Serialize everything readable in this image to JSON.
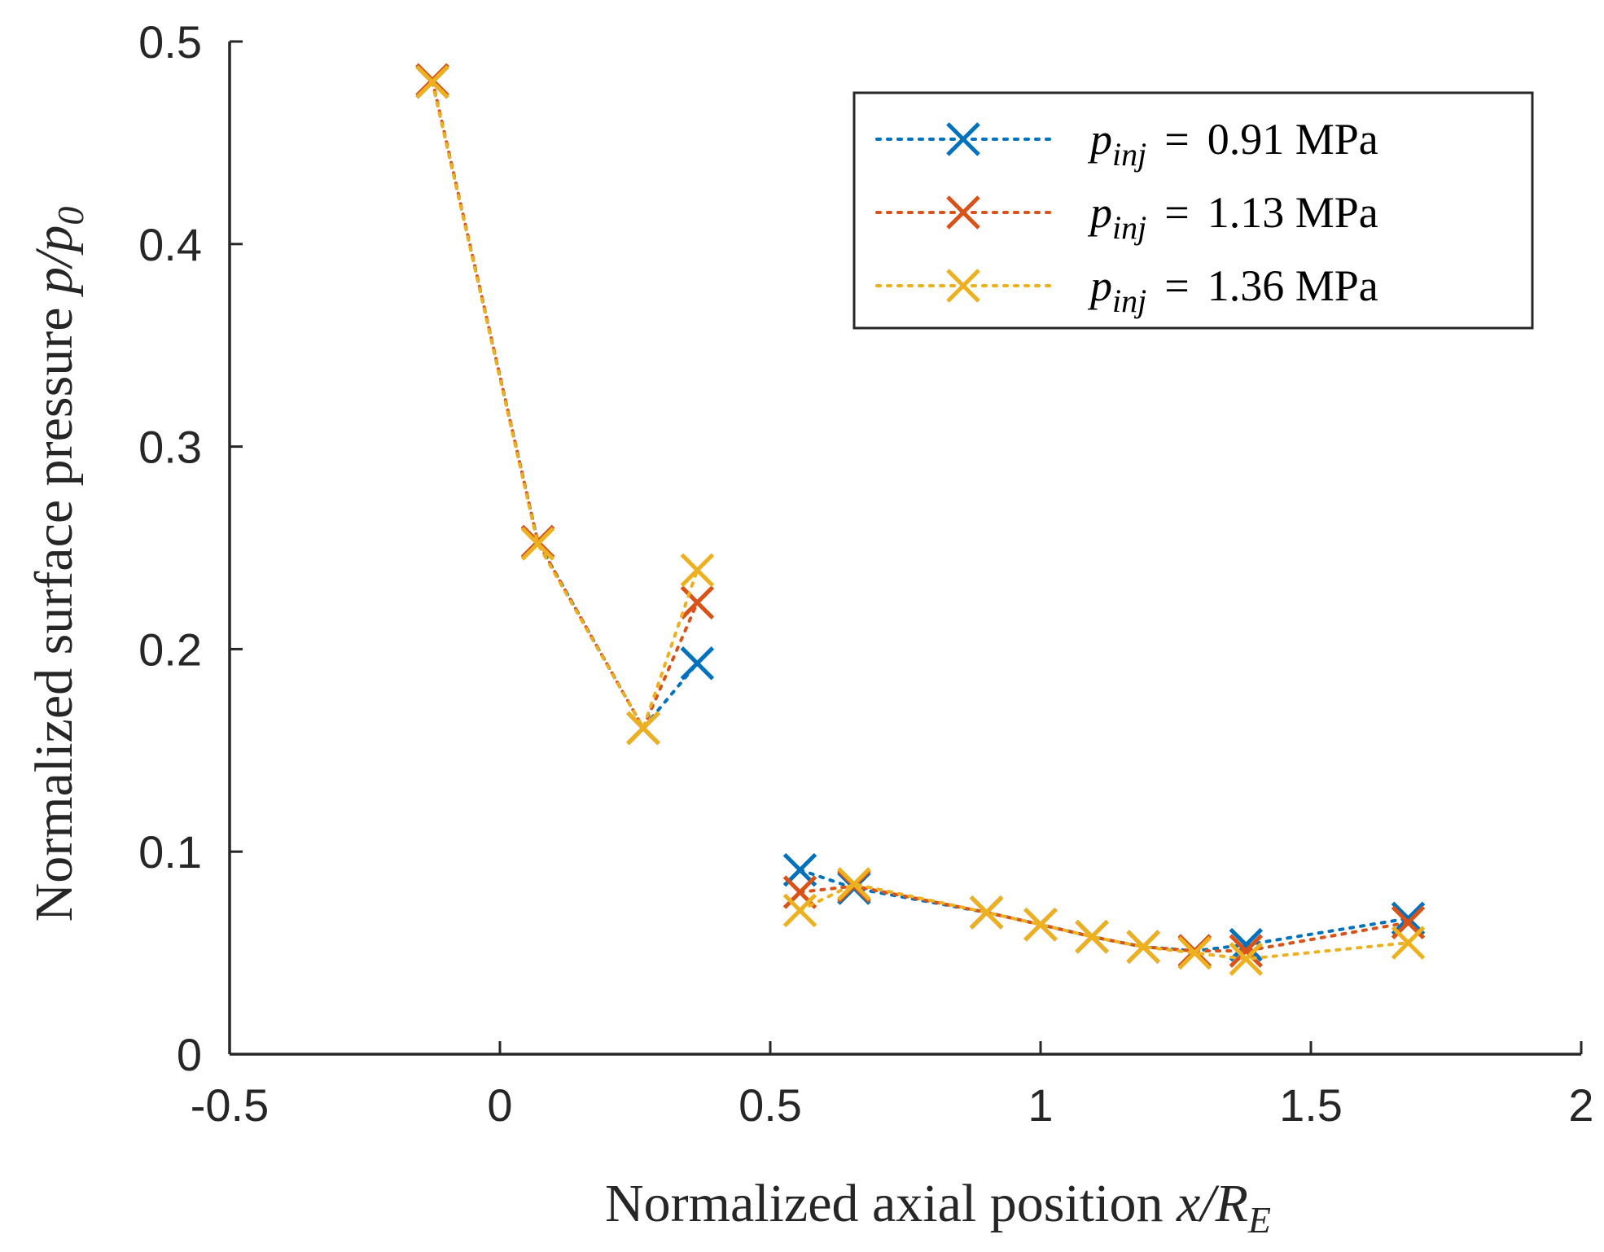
{
  "chart_data": {
    "type": "line",
    "xlabel": "Normalized axial position",
    "xlabel_math": "x/R",
    "xlabel_math_sub": "E",
    "ylabel": "Normalized surface pressure",
    "ylabel_math": "p/p",
    "ylabel_math_sub": "0",
    "xlim": [
      -0.5,
      2
    ],
    "ylim": [
      0,
      0.5
    ],
    "xticks": [
      -0.5,
      0,
      0.5,
      1,
      1.5,
      2
    ],
    "xtick_labels": [
      "-0.5",
      "0",
      "0.5",
      "1",
      "1.5",
      "2"
    ],
    "yticks": [
      0,
      0.1,
      0.2,
      0.3,
      0.4,
      0.5
    ],
    "ytick_labels": [
      "0",
      "0.1",
      "0.2",
      "0.3",
      "0.4",
      "0.5"
    ],
    "grid": false,
    "legend_position": "top-right",
    "marker": "x",
    "line_style": "dotted",
    "legend_prefix": "p",
    "legend_sub": "inj",
    "legend_eq": "=",
    "series": [
      {
        "name": "p_inj = 0.91 MPa",
        "label_value": "0.91 MPa",
        "color": "#0072BD",
        "segments": [
          [
            [
              -0.125,
              0.48
            ],
            [
              0.07,
              0.253
            ],
            [
              0.265,
              0.161
            ],
            [
              0.365,
              0.193
            ]
          ],
          [
            [
              0.555,
              0.091
            ],
            [
              0.655,
              0.082
            ],
            [
              0.9,
              0.07
            ],
            [
              1.0,
              0.064
            ],
            [
              1.095,
              0.058
            ],
            [
              1.19,
              0.053
            ],
            [
              1.285,
              0.051
            ],
            [
              1.38,
              0.054
            ],
            [
              1.68,
              0.067
            ]
          ]
        ]
      },
      {
        "name": "p_inj = 1.13 MPa",
        "label_value": "1.13 MPa",
        "color": "#D95319",
        "segments": [
          [
            [
              -0.125,
              0.481
            ],
            [
              0.07,
              0.253
            ],
            [
              0.265,
              0.161
            ],
            [
              0.365,
              0.223
            ]
          ],
          [
            [
              0.555,
              0.08
            ],
            [
              0.655,
              0.083
            ],
            [
              0.9,
              0.07
            ],
            [
              1.0,
              0.064
            ],
            [
              1.095,
              0.058
            ],
            [
              1.19,
              0.053
            ],
            [
              1.285,
              0.051
            ],
            [
              1.38,
              0.051
            ],
            [
              1.68,
              0.065
            ]
          ]
        ]
      },
      {
        "name": "p_inj = 1.36 MPa",
        "label_value": "1.36 MPa",
        "color": "#EDB120",
        "segments": [
          [
            [
              -0.125,
              0.48
            ],
            [
              0.07,
              0.252
            ],
            [
              0.265,
              0.161
            ],
            [
              0.365,
              0.239
            ]
          ],
          [
            [
              0.555,
              0.071
            ],
            [
              0.655,
              0.084
            ],
            [
              0.9,
              0.07
            ],
            [
              1.0,
              0.064
            ],
            [
              1.095,
              0.058
            ],
            [
              1.19,
              0.053
            ],
            [
              1.285,
              0.05
            ],
            [
              1.38,
              0.047
            ],
            [
              1.68,
              0.055
            ]
          ]
        ]
      }
    ]
  }
}
